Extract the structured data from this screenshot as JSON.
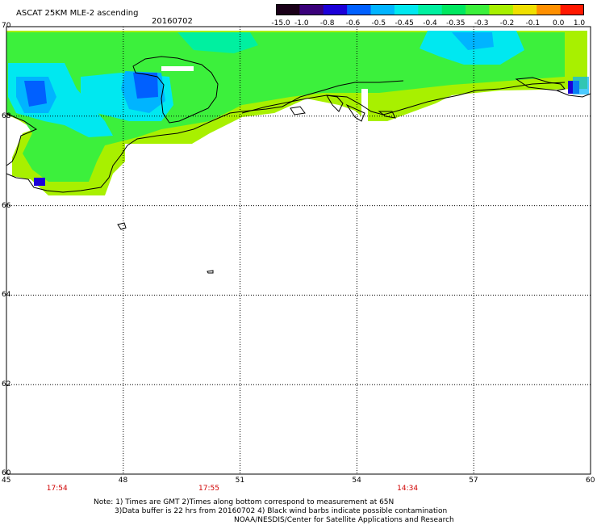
{
  "header": {
    "title": "ASCAT 25KM MLE-2 ascending",
    "date": "20160702"
  },
  "colorbar": {
    "labels": [
      "-15.0",
      "-1.0",
      "-0.8",
      "-0.6",
      "-0.5",
      "-0.45",
      "-0.4",
      "-0.35",
      "-0.3",
      "-0.2",
      "-0.1",
      "0.0",
      "1.0"
    ],
    "colors": [
      "#1a0018",
      "#3a007a",
      "#1c00d8",
      "#0060ff",
      "#00b4ff",
      "#00e8f0",
      "#00f0a0",
      "#00e860",
      "#3cf03c",
      "#a8f000",
      "#f0e000",
      "#ff9000",
      "#ff1800"
    ]
  },
  "map": {
    "lon_ticks": [
      "45",
      "48",
      "51",
      "54",
      "57",
      "60"
    ],
    "lat_ticks": [
      "70",
      "68",
      "66",
      "64",
      "62",
      "60"
    ],
    "lon_range": [
      45,
      60
    ],
    "lat_range": [
      60,
      70
    ],
    "colors": {
      "land_line": "#000000",
      "grid": "#000000",
      "time_label": "#d00000"
    }
  },
  "times": [
    {
      "lon": 46.3,
      "label": "17:54"
    },
    {
      "lon": 50.2,
      "label": "17:55"
    },
    {
      "lon": 55.3,
      "label": "14:34"
    }
  ],
  "notes": [
    "Note: 1) Times are GMT 2)Times along bottom correspond to measurement at 65N",
    "3)Data buffer is 22 hrs from 20160702 4) Black wind barbs indicate possible contamination",
    "NOAA/NESDIS/Center for Satellite Applications and Research"
  ]
}
